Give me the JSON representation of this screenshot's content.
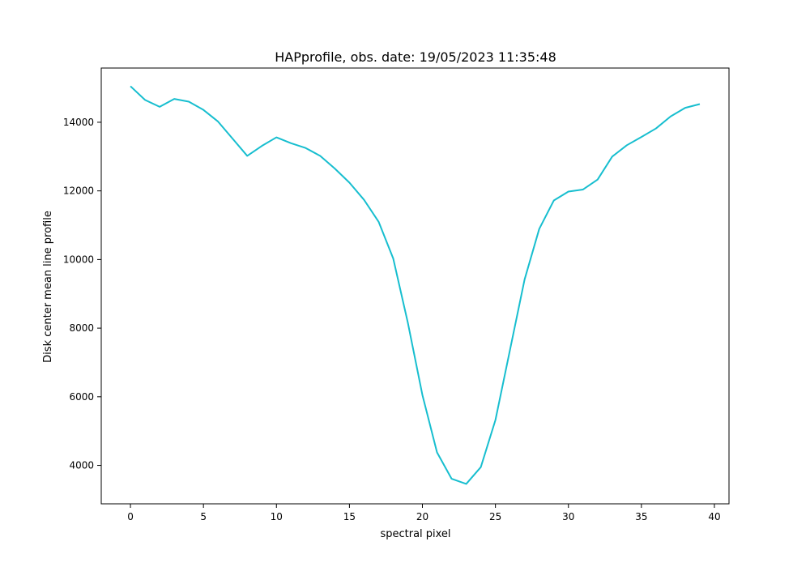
{
  "chart_data": {
    "type": "line",
    "title": "HAPprofile, obs. date: 19/05/2023 11:35:48",
    "xlabel": "spectral pixel",
    "ylabel": "Disk center mean line profile",
    "xlim": [
      -2,
      41
    ],
    "ylim": [
      2880,
      15580
    ],
    "xticks": [
      0,
      5,
      10,
      15,
      20,
      25,
      30,
      35,
      40
    ],
    "xtick_labels": [
      "0",
      "5",
      "10",
      "15",
      "20",
      "25",
      "30",
      "35",
      "40"
    ],
    "yticks": [
      4000,
      6000,
      8000,
      10000,
      12000,
      14000
    ],
    "ytick_labels": [
      "4000",
      "6000",
      "8000",
      "10000",
      "12000",
      "14000"
    ],
    "grid": false,
    "series": [
      {
        "color": "#17becf",
        "x": [
          0,
          1,
          2,
          3,
          4,
          5,
          6,
          7,
          8,
          9,
          10,
          11,
          12,
          13,
          14,
          15,
          16,
          17,
          18,
          19,
          20,
          21,
          22,
          23,
          24,
          25,
          26,
          27,
          28,
          29,
          30,
          31,
          32,
          33,
          34,
          35,
          36,
          37,
          38,
          39
        ],
        "values": [
          15050,
          14650,
          14450,
          14680,
          14600,
          14360,
          14020,
          13520,
          13020,
          13310,
          13560,
          13390,
          13250,
          13020,
          12650,
          12240,
          11740,
          11100,
          10030,
          8160,
          6050,
          4380,
          3610,
          3460,
          3950,
          5320,
          7370,
          9420,
          10890,
          11720,
          11980,
          12040,
          12330,
          13000,
          13330,
          13570,
          13820,
          14170,
          14420,
          14530
        ]
      }
    ]
  }
}
